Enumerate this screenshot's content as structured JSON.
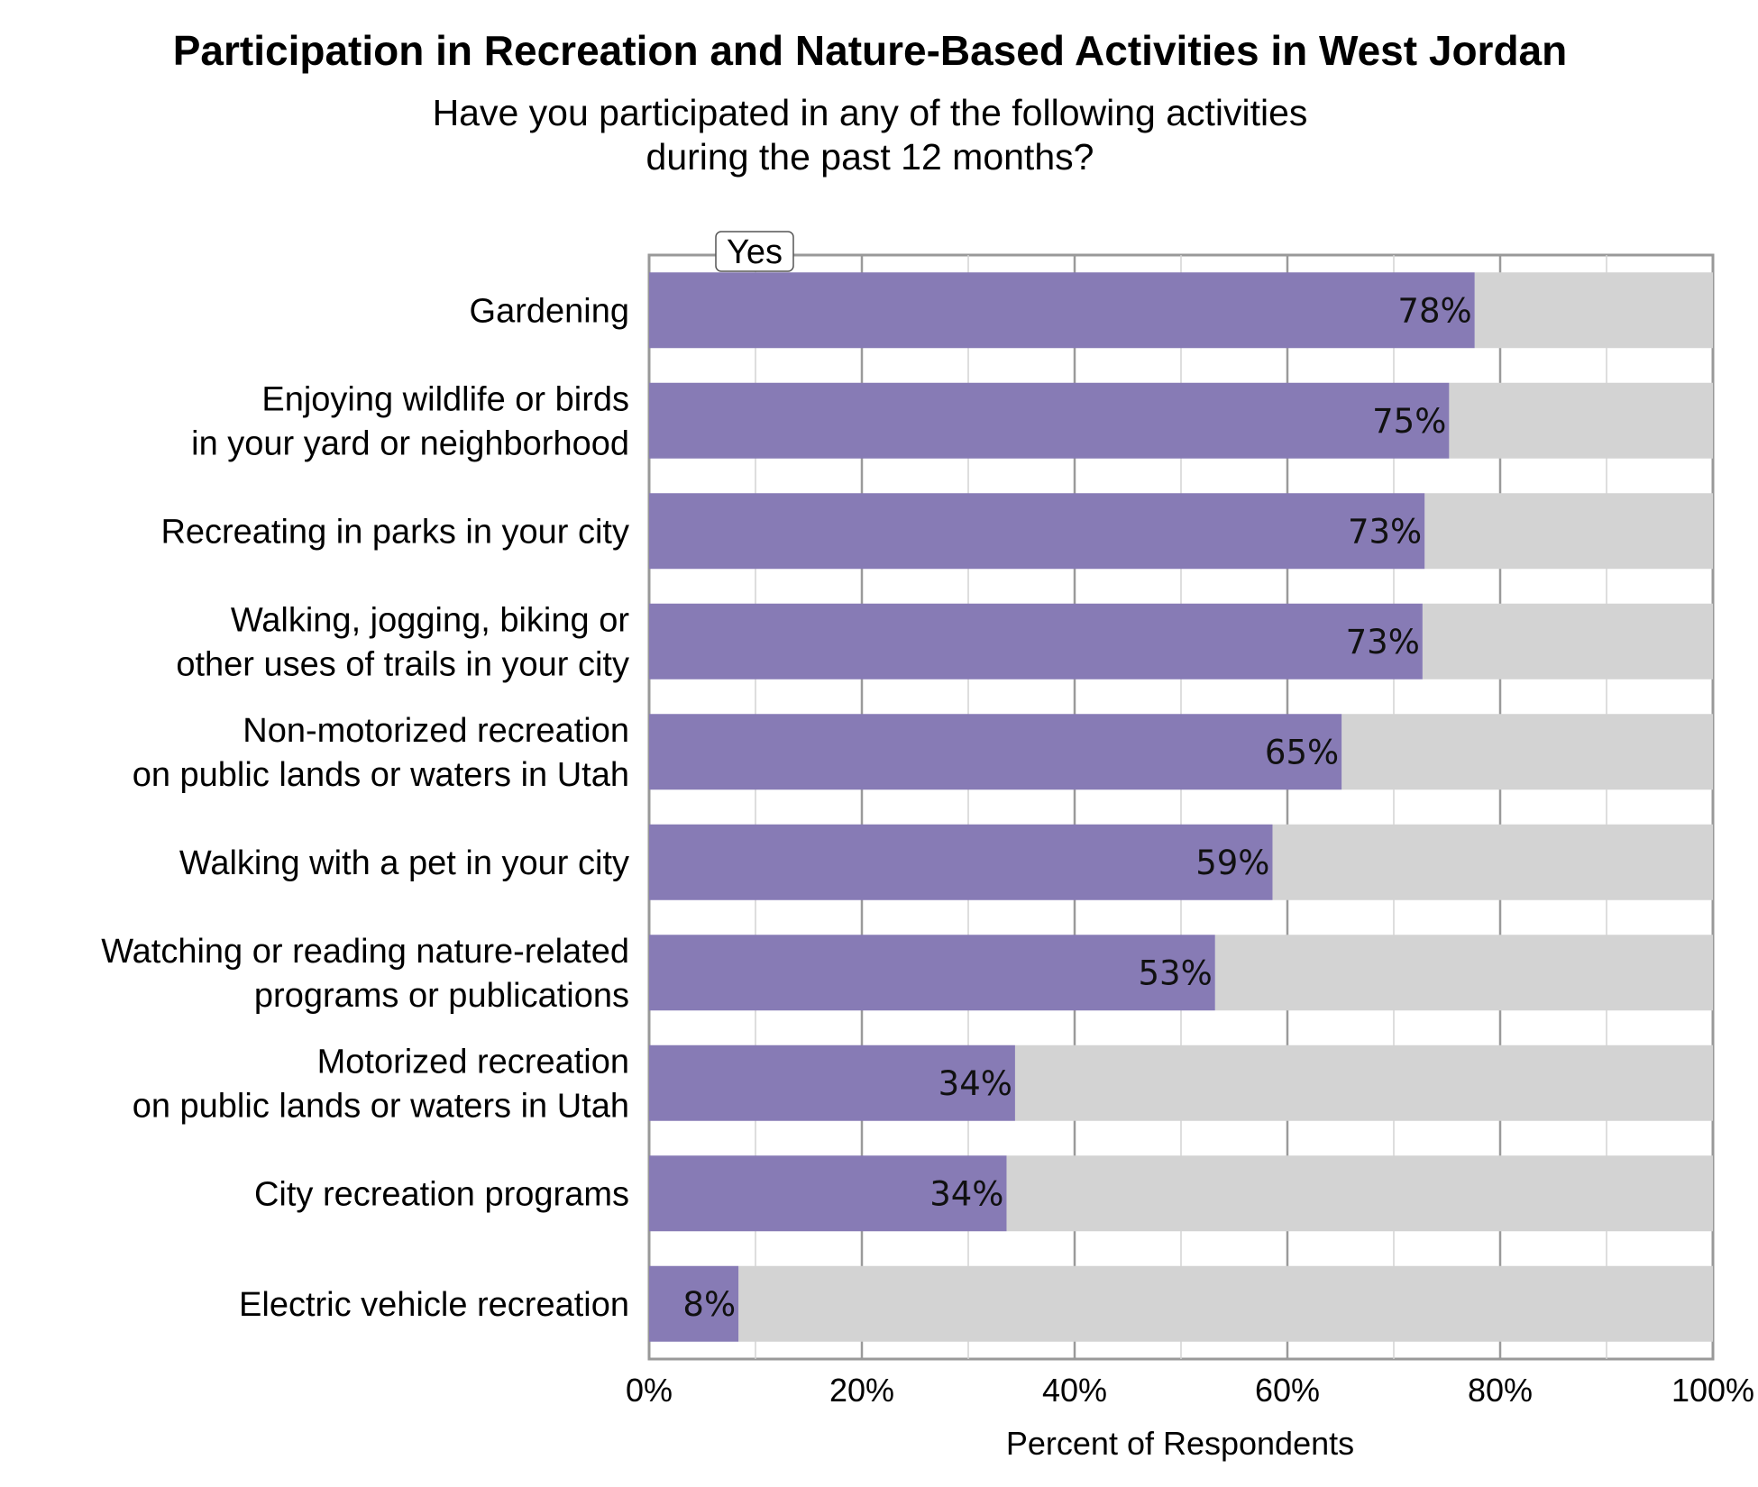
{
  "chart_data": {
    "type": "bar",
    "orientation": "horizontal",
    "title": "Participation in Recreation and Nature-Based Activities in West Jordan",
    "subtitle": [
      "Have you participated in any of the following activities",
      "during the past 12 months?"
    ],
    "xlabel": "Percent of Respondents",
    "ylabel": "",
    "xlim": [
      0,
      100
    ],
    "x_ticks": [
      "0%",
      "20%",
      "40%",
      "60%",
      "80%",
      "100%"
    ],
    "grid": true,
    "legend": {
      "placement": "top-left",
      "entries": [
        "Yes"
      ]
    },
    "categories": [
      [
        "Gardening"
      ],
      [
        "Enjoying wildlife or birds",
        "in your yard or neighborhood"
      ],
      [
        "Recreating in parks in your city"
      ],
      [
        "Walking, jogging, biking or",
        "other uses of trails in your city"
      ],
      [
        "Non-motorized recreation",
        "on public lands or waters in Utah"
      ],
      [
        "Walking with a pet in your city"
      ],
      [
        "Watching or reading nature-related",
        "programs or publications"
      ],
      [
        "Motorized recreation",
        "on public lands or waters in Utah"
      ],
      [
        "City recreation programs"
      ],
      [
        "Electric vehicle recreation"
      ]
    ],
    "series": [
      {
        "name": "Yes",
        "color": "#877bb5",
        "values": [
          77.6,
          75.2,
          72.9,
          72.7,
          65.1,
          58.6,
          53.2,
          34.4,
          33.6,
          8.4
        ],
        "labels": [
          "78%",
          "75%",
          "73%",
          "73%",
          "65%",
          "59%",
          "53%",
          "34%",
          "34%",
          "8%"
        ]
      }
    ],
    "remainder_color": "#d3d3d3",
    "plot_border_color": "#999999"
  }
}
